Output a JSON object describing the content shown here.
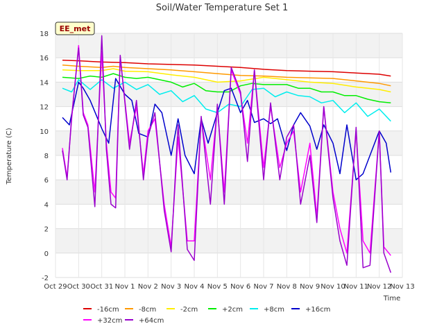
{
  "chart_data": {
    "type": "line",
    "title": "Soil/Water Temperature Set 1",
    "xlabel": "Time",
    "ylabel": "Temperature (C)",
    "site_label": "EE_met",
    "ylim": [
      -2,
      18
    ],
    "yticks": [
      -2,
      0,
      2,
      4,
      6,
      8,
      10,
      12,
      14,
      16,
      18
    ],
    "xlim": [
      0,
      15
    ],
    "xtick_labels": [
      "Oct 29",
      "Oct 30",
      "Oct 31",
      "Nov 1",
      "Nov 2",
      "Nov 3",
      "Nov 4",
      "Nov 5",
      "Nov 6",
      "Nov 7",
      "Nov 8",
      "Nov 9",
      "Nov 10",
      "Nov 11",
      "Nov 12",
      "Nov 13"
    ],
    "grid": true,
    "legend_position": "bottom",
    "series": [
      {
        "name": "-16cm",
        "color": "#dd0000",
        "x": [
          0.3,
          1,
          2,
          3,
          4,
          5,
          6,
          7,
          8,
          9,
          10,
          11,
          12,
          13,
          14,
          14.5
        ],
        "y": [
          15.8,
          15.75,
          15.65,
          15.6,
          15.5,
          15.45,
          15.4,
          15.3,
          15.2,
          15.05,
          14.95,
          14.9,
          14.85,
          14.75,
          14.65,
          14.5
        ]
      },
      {
        "name": "-8cm",
        "color": "#ff9900",
        "x": [
          0.3,
          1,
          2,
          2.5,
          3,
          4,
          5,
          6,
          7,
          8,
          9,
          10,
          11,
          12,
          13,
          14,
          14.5
        ],
        "y": [
          15.4,
          15.3,
          15.2,
          15.3,
          15.2,
          15.1,
          15.0,
          14.85,
          14.7,
          14.55,
          14.5,
          14.4,
          14.35,
          14.3,
          14.1,
          13.9,
          13.7
        ]
      },
      {
        "name": "-2cm",
        "color": "#ffee00",
        "x": [
          0.3,
          1,
          2,
          2.5,
          3,
          4,
          5,
          6,
          7,
          8,
          9,
          10,
          11,
          12,
          13,
          14,
          14.5
        ],
        "y": [
          15.0,
          14.95,
          14.95,
          15.1,
          14.9,
          14.85,
          14.6,
          14.4,
          14.0,
          14.1,
          14.4,
          14.2,
          14.0,
          13.9,
          13.6,
          13.4,
          13.2
        ]
      },
      {
        "name": "+2cm",
        "color": "#00ee00",
        "x": [
          0.3,
          1,
          1.5,
          2,
          2.5,
          3,
          3.5,
          4,
          5,
          5.5,
          6,
          6.5,
          7,
          7.5,
          8,
          8.5,
          9,
          9.5,
          10,
          10.5,
          11,
          11.5,
          12,
          12.5,
          13,
          13.5,
          14,
          14.5
        ],
        "y": [
          14.4,
          14.3,
          14.5,
          14.4,
          14.7,
          14.4,
          14.3,
          14.4,
          14.0,
          13.6,
          13.9,
          13.3,
          13.2,
          13.2,
          13.7,
          13.9,
          13.8,
          13.8,
          13.8,
          13.5,
          13.5,
          13.2,
          13.2,
          12.9,
          12.9,
          12.6,
          12.4,
          12.3
        ]
      },
      {
        "name": "+8cm",
        "color": "#00eeee",
        "x": [
          0.3,
          0.7,
          1,
          1.5,
          2,
          2.5,
          3,
          3.5,
          4,
          4.5,
          5,
          5.5,
          6,
          6.5,
          7,
          7.5,
          8,
          8.5,
          9,
          9.5,
          10,
          10.5,
          11,
          11.5,
          12,
          12.5,
          13,
          13.5,
          14,
          14.5
        ],
        "y": [
          13.5,
          13.2,
          14.2,
          13.4,
          14.2,
          13.5,
          14.0,
          13.4,
          13.8,
          13.0,
          13.3,
          12.4,
          12.9,
          11.8,
          11.5,
          12.2,
          12.0,
          13.4,
          13.5,
          12.8,
          13.2,
          12.9,
          12.8,
          12.3,
          12.5,
          11.5,
          12.3,
          11.2,
          11.8,
          10.8
        ]
      },
      {
        "name": "+16cm",
        "color": "#0000cc",
        "x": [
          0.3,
          0.6,
          1,
          1.2,
          1.5,
          2,
          2.3,
          2.6,
          3,
          3.3,
          3.6,
          4,
          4.3,
          4.6,
          5,
          5.3,
          5.6,
          6,
          6.3,
          6.6,
          7,
          7.3,
          7.6,
          8,
          8.3,
          8.6,
          9,
          9.3,
          9.6,
          10,
          10.3,
          10.6,
          11,
          11.3,
          11.6,
          12,
          12.3,
          12.6,
          13,
          13.3,
          13.6,
          14,
          14.3,
          14.5
        ],
        "y": [
          11.1,
          10.5,
          14.0,
          13.5,
          12.5,
          10.2,
          9.0,
          14.3,
          13.0,
          12.5,
          9.8,
          9.5,
          12.2,
          11.5,
          8.0,
          11.0,
          8.0,
          6.5,
          11.0,
          9.0,
          11.5,
          13.3,
          13.5,
          11.5,
          12.5,
          10.7,
          11.0,
          10.6,
          11.0,
          8.4,
          10.5,
          11.5,
          10.4,
          8.5,
          10.5,
          9.0,
          6.5,
          10.5,
          6.0,
          6.5,
          8.0,
          10.0,
          9.0,
          6.6
        ]
      },
      {
        "name": "+32cm",
        "color": "#ff00ff",
        "x": [
          0.3,
          0.5,
          0.7,
          1.0,
          1.2,
          1.4,
          1.7,
          2.0,
          2.2,
          2.4,
          2.6,
          2.8,
          3.2,
          3.5,
          3.8,
          4.0,
          4.3,
          4.7,
          5.0,
          5.3,
          5.7,
          6.0,
          6.3,
          6.7,
          7.0,
          7.3,
          7.6,
          8.0,
          8.3,
          8.6,
          9.0,
          9.3,
          9.7,
          10.0,
          10.3,
          10.6,
          11.0,
          11.3,
          11.6,
          12.0,
          12.3,
          12.6,
          13.0,
          13.3,
          13.6,
          14.0,
          14.2,
          14.5
        ],
        "y": [
          8.6,
          6.2,
          11.0,
          17.0,
          11.5,
          10.5,
          5.0,
          16.5,
          9.0,
          5.0,
          4.5,
          16.0,
          9.0,
          12.0,
          6.5,
          10.0,
          11.0,
          4.0,
          0.5,
          9.5,
          1.0,
          1.0,
          11.0,
          6.0,
          12.0,
          5.0,
          15.0,
          13.0,
          9.0,
          15.0,
          7.0,
          12.0,
          7.0,
          9.0,
          10.0,
          5.0,
          9.0,
          3.0,
          12.0,
          5.0,
          2.0,
          0.0,
          10.0,
          1.0,
          0.0,
          10.0,
          0.5,
          -0.2
        ]
      },
      {
        "name": "+64cm",
        "color": "#9900cc",
        "x": [
          0.3,
          0.5,
          0.7,
          1.0,
          1.2,
          1.4,
          1.7,
          2.0,
          2.2,
          2.4,
          2.6,
          2.8,
          3.2,
          3.5,
          3.8,
          4.0,
          4.3,
          4.7,
          5.0,
          5.3,
          5.7,
          6.0,
          6.3,
          6.7,
          7.0,
          7.3,
          7.6,
          8.0,
          8.3,
          8.6,
          9.0,
          9.3,
          9.7,
          10.0,
          10.3,
          10.6,
          11.0,
          11.3,
          11.6,
          12.0,
          12.3,
          12.6,
          13.0,
          13.3,
          13.6,
          14.0,
          14.2,
          14.5
        ],
        "y": [
          8.4,
          6.0,
          11.2,
          16.8,
          11.3,
          10.3,
          3.8,
          17.8,
          8.5,
          4.0,
          3.7,
          16.2,
          8.5,
          12.5,
          6.0,
          9.5,
          11.5,
          3.5,
          0.1,
          10.5,
          0.3,
          -0.6,
          11.2,
          4.0,
          12.2,
          4.0,
          15.2,
          13.2,
          7.5,
          15.0,
          6.0,
          12.3,
          6.0,
          9.5,
          10.5,
          4.0,
          8.0,
          2.5,
          12.0,
          4.5,
          1.0,
          -1.0,
          10.3,
          -1.2,
          -1.0,
          10.0,
          0.0,
          -1.6
        ]
      }
    ]
  }
}
